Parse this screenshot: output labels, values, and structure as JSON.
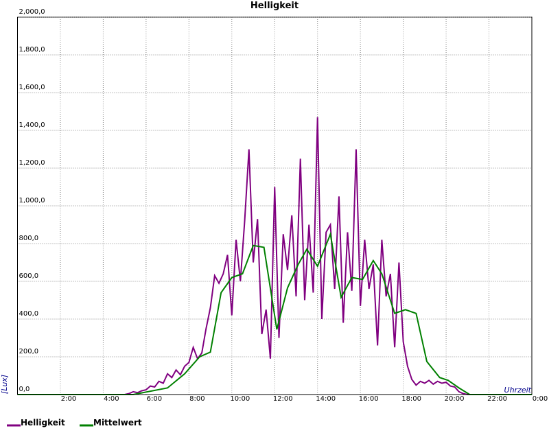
{
  "chart_data": {
    "type": "line",
    "title": "Helligkeit",
    "y_label": "[Lux]",
    "x_label": "Uhrzeit",
    "xlim": [
      0,
      24
    ],
    "ylim": [
      0,
      2000
    ],
    "xticks": [
      {
        "value": 2,
        "label": "2:00"
      },
      {
        "value": 4,
        "label": "4:00"
      },
      {
        "value": 6,
        "label": "6:00"
      },
      {
        "value": 8,
        "label": "8:00"
      },
      {
        "value": 10,
        "label": "10:00"
      },
      {
        "value": 12,
        "label": "12:00"
      },
      {
        "value": 14,
        "label": "14:00"
      },
      {
        "value": 16,
        "label": "16:00"
      },
      {
        "value": 18,
        "label": "18:00"
      },
      {
        "value": 20,
        "label": "20:00"
      },
      {
        "value": 22,
        "label": "22:00"
      },
      {
        "value": 24,
        "label": "0:00"
      }
    ],
    "yticks": [
      {
        "value": 0,
        "label": "0,0"
      },
      {
        "value": 200,
        "label": "200,0"
      },
      {
        "value": 400,
        "label": "400,0"
      },
      {
        "value": 600,
        "label": "600,0"
      },
      {
        "value": 800,
        "label": "800,0"
      },
      {
        "value": 1000,
        "label": "1,000,0"
      },
      {
        "value": 1200,
        "label": "1,200,0"
      },
      {
        "value": 1400,
        "label": "1,400,0"
      },
      {
        "value": 1600,
        "label": "1,600,0"
      },
      {
        "value": 1800,
        "label": "1,800,0"
      },
      {
        "value": 2000,
        "label": "2,000,0"
      }
    ],
    "grid": true,
    "legend": "bottom",
    "series": [
      {
        "name": "Helligkeit",
        "color": "#800080",
        "x": [
          0,
          5.0,
          5.2,
          5.4,
          5.6,
          5.8,
          6.0,
          6.2,
          6.4,
          6.6,
          6.8,
          7.0,
          7.2,
          7.4,
          7.6,
          7.8,
          8.0,
          8.2,
          8.4,
          8.6,
          8.8,
          9.0,
          9.2,
          9.4,
          9.6,
          9.8,
          10.0,
          10.2,
          10.4,
          10.6,
          10.8,
          11.0,
          11.2,
          11.4,
          11.6,
          11.8,
          12.0,
          12.2,
          12.4,
          12.6,
          12.8,
          13.0,
          13.2,
          13.4,
          13.6,
          13.8,
          14.0,
          14.2,
          14.4,
          14.6,
          14.8,
          15.0,
          15.2,
          15.4,
          15.6,
          15.8,
          16.0,
          16.2,
          16.4,
          16.6,
          16.8,
          17.0,
          17.2,
          17.4,
          17.6,
          17.8,
          18.0,
          18.2,
          18.4,
          18.6,
          18.8,
          19.0,
          19.2,
          19.4,
          19.6,
          19.8,
          20.0,
          20.2,
          20.4,
          20.6,
          20.8,
          21.0,
          24
        ],
        "values": [
          0,
          0,
          5,
          15,
          10,
          20,
          25,
          45,
          40,
          70,
          60,
          110,
          90,
          130,
          105,
          150,
          170,
          250,
          190,
          220,
          350,
          460,
          630,
          590,
          640,
          740,
          420,
          820,
          600,
          920,
          1300,
          700,
          930,
          320,
          450,
          190,
          1100,
          300,
          850,
          660,
          950,
          520,
          1250,
          500,
          900,
          540,
          1470,
          400,
          860,
          900,
          560,
          1050,
          380,
          860,
          550,
          1300,
          470,
          820,
          560,
          690,
          260,
          820,
          520,
          640,
          250,
          700,
          280,
          150,
          80,
          50,
          70,
          60,
          75,
          55,
          70,
          60,
          65,
          45,
          40,
          15,
          5,
          0,
          0
        ]
      },
      {
        "name": "Mittelwert",
        "color": "#008000",
        "x": [
          0,
          5.4,
          7.0,
          7.8,
          8.5,
          9.0,
          9.5,
          10.0,
          10.5,
          11.0,
          11.5,
          12.1,
          12.6,
          13.1,
          13.5,
          14.0,
          14.6,
          15.1,
          15.6,
          16.1,
          16.6,
          17.0,
          17.6,
          18.1,
          18.6,
          19.1,
          19.7,
          20.1,
          20.6,
          21.1,
          24
        ],
        "values": [
          0,
          0,
          35,
          110,
          200,
          225,
          540,
          620,
          640,
          790,
          780,
          345,
          565,
          690,
          770,
          680,
          850,
          515,
          620,
          610,
          710,
          640,
          430,
          450,
          430,
          175,
          90,
          75,
          35,
          0,
          0
        ]
      }
    ]
  }
}
